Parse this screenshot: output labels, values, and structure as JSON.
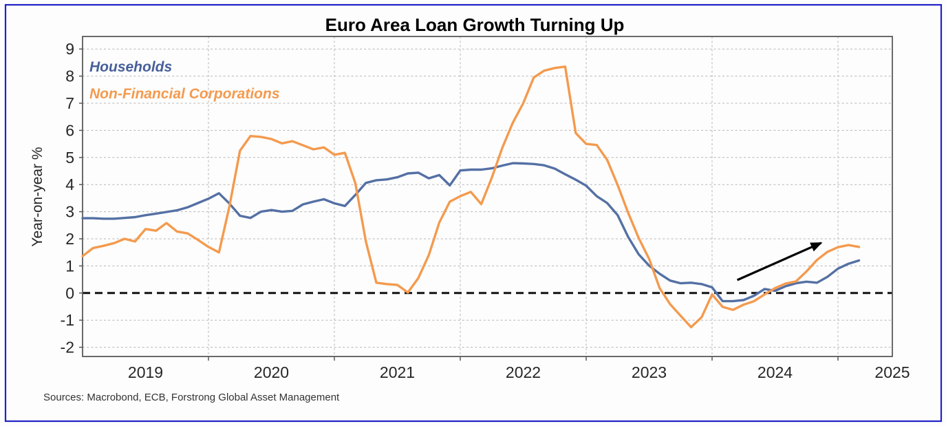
{
  "figure": {
    "border_color": "#2121c8",
    "source_note": "Sources: Macrobond, ECB, Forstrong Global Asset Management"
  },
  "chart_data": {
    "type": "line",
    "title": "Euro Area Loan Growth Turning Up",
    "ylabel": "Year-on-year %",
    "frequency": "monthly",
    "x_start": "2019-01",
    "x_end": "2025-03",
    "ylim": [
      -2.35,
      9.45
    ],
    "yticks": [
      9,
      8,
      7,
      6,
      5,
      4,
      3,
      2,
      1,
      0,
      -1,
      -2
    ],
    "xticks": [
      "2019",
      "2020",
      "2021",
      "2022",
      "2023",
      "2024",
      "2025"
    ],
    "grid": true,
    "zero_line": "dashed-black",
    "legend_position": "top-left-inside",
    "series": [
      {
        "name": "Households",
        "color": "#5470a4",
        "values": [
          2.76,
          2.76,
          2.74,
          2.74,
          2.77,
          2.8,
          2.87,
          2.93,
          2.99,
          3.05,
          3.16,
          3.32,
          3.48,
          3.68,
          3.3,
          2.85,
          2.77,
          3.0,
          3.06,
          3.0,
          3.03,
          3.27,
          3.37,
          3.46,
          3.31,
          3.21,
          3.62,
          4.06,
          4.16,
          4.19,
          4.27,
          4.41,
          4.44,
          4.23,
          4.35,
          3.97,
          4.52,
          4.55,
          4.55,
          4.6,
          4.7,
          4.79,
          4.78,
          4.76,
          4.71,
          4.59,
          4.38,
          4.18,
          3.96,
          3.57,
          3.32,
          2.87,
          2.07,
          1.43,
          1.01,
          0.71,
          0.46,
          0.36,
          0.38,
          0.33,
          0.21,
          -0.3,
          -0.3,
          -0.26,
          -0.1,
          0.15,
          0.08,
          0.25,
          0.36,
          0.42,
          0.38,
          0.6,
          0.9,
          1.08,
          1.2
        ]
      },
      {
        "name": "Non-Financial Corporations",
        "color": "#f49a4e",
        "values": [
          1.36,
          1.66,
          1.74,
          1.84,
          2.0,
          1.9,
          2.36,
          2.3,
          2.58,
          2.27,
          2.2,
          1.96,
          1.7,
          1.5,
          3.2,
          5.25,
          5.79,
          5.76,
          5.68,
          5.52,
          5.6,
          5.45,
          5.3,
          5.37,
          5.1,
          5.17,
          4.05,
          1.9,
          0.38,
          0.33,
          0.3,
          0.02,
          0.55,
          1.4,
          2.6,
          3.37,
          3.57,
          3.73,
          3.28,
          4.25,
          5.35,
          6.28,
          7.0,
          7.95,
          8.2,
          8.3,
          8.35,
          5.9,
          5.5,
          5.46,
          4.91,
          3.98,
          2.96,
          2.03,
          1.26,
          0.18,
          -0.41,
          -0.84,
          -1.26,
          -0.89,
          -0.05,
          -0.51,
          -0.62,
          -0.43,
          -0.3,
          -0.05,
          0.18,
          0.35,
          0.43,
          0.8,
          1.22,
          1.52,
          1.69,
          1.77,
          1.7
        ]
      }
    ],
    "annotations": [
      {
        "type": "arrow",
        "color": "#000000",
        "from": {
          "month_index": 62.4,
          "value": 0.48
        },
        "to": {
          "month_index": 70.4,
          "value": 1.85
        }
      }
    ]
  }
}
